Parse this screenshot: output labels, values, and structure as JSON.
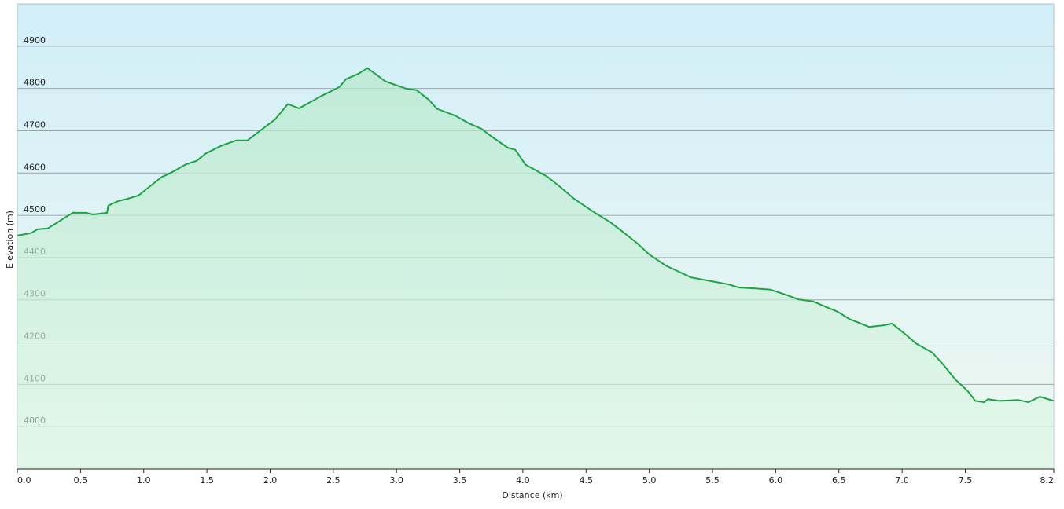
{
  "chart_data": {
    "type": "line",
    "x_label": "Distance  (km)",
    "y_label": "Elevation (m)",
    "color": "#1fa348",
    "grid": true,
    "xlim": [
      0,
      8.2
    ],
    "ylim": [
      3900,
      5000
    ],
    "xticks": [
      {
        "value": 0,
        "label": "0.0"
      },
      0.5,
      {
        "value": 1,
        "label": "1.0"
      },
      1.5,
      {
        "value": 2,
        "label": "2.0"
      },
      2.5,
      {
        "value": 3,
        "label": "3.0"
      },
      3.5,
      {
        "value": 4,
        "label": "4.0"
      },
      4.5,
      {
        "value": 5,
        "label": "5.0"
      },
      5.5,
      {
        "value": 6,
        "label": "6.0"
      },
      6.5,
      {
        "value": 7,
        "label": "7.0"
      },
      7.5,
      8.2
    ],
    "yticks": [
      4000,
      4100,
      4200,
      4300,
      4400,
      4500,
      4600,
      4700,
      4800,
      4900
    ],
    "x": [
      0,
      0.11,
      0.16,
      0.24,
      0.3,
      0.39,
      0.44,
      0.54,
      0.6,
      0.71,
      0.72,
      0.8,
      0.86,
      0.96,
      1.05,
      1.14,
      1.23,
      1.33,
      1.42,
      1.49,
      1.61,
      1.73,
      1.82,
      1.92,
      2.04,
      2.14,
      2.23,
      2.32,
      2.41,
      2.48,
      2.55,
      2.6,
      2.7,
      2.77,
      2.84,
      2.91,
      3.07,
      3.16,
      3.26,
      3.32,
      3.47,
      3.57,
      3.67,
      3.75,
      3.88,
      3.94,
      4.02,
      4.19,
      4.28,
      4.41,
      4.56,
      4.69,
      4.79,
      4.9,
      5.0,
      5.13,
      5.21,
      5.33,
      5.49,
      5.62,
      5.71,
      5.84,
      5.96,
      6.09,
      6.18,
      6.3,
      6.4,
      6.49,
      6.58,
      6.74,
      6.86,
      6.92,
      7.02,
      7.11,
      7.24,
      7.33,
      7.42,
      7.52,
      7.58,
      7.65,
      7.68,
      7.77,
      7.92,
      8.0,
      8.09,
      8.2
    ],
    "values": [
      4452,
      4458,
      4467,
      4469,
      4480,
      4497,
      4506,
      4506,
      4502,
      4506,
      4523,
      4534,
      4538,
      4547,
      4569,
      4590,
      4603,
      4620,
      4629,
      4646,
      4664,
      4677,
      4677,
      4700,
      4727,
      4763,
      4753,
      4768,
      4783,
      4793,
      4804,
      4822,
      4835,
      4848,
      4833,
      4817,
      4800,
      4796,
      4772,
      4752,
      4735,
      4718,
      4705,
      4687,
      4660,
      4655,
      4620,
      4592,
      4571,
      4538,
      4508,
      4484,
      4461,
      4435,
      4407,
      4381,
      4370,
      4353,
      4344,
      4337,
      4329,
      4327,
      4324,
      4311,
      4301,
      4296,
      4283,
      4272,
      4255,
      4236,
      4240,
      4244,
      4220,
      4197,
      4175,
      4145,
      4112,
      4084,
      4061,
      4058,
      4065,
      4061,
      4063,
      4058,
      4071,
      4061
    ]
  }
}
